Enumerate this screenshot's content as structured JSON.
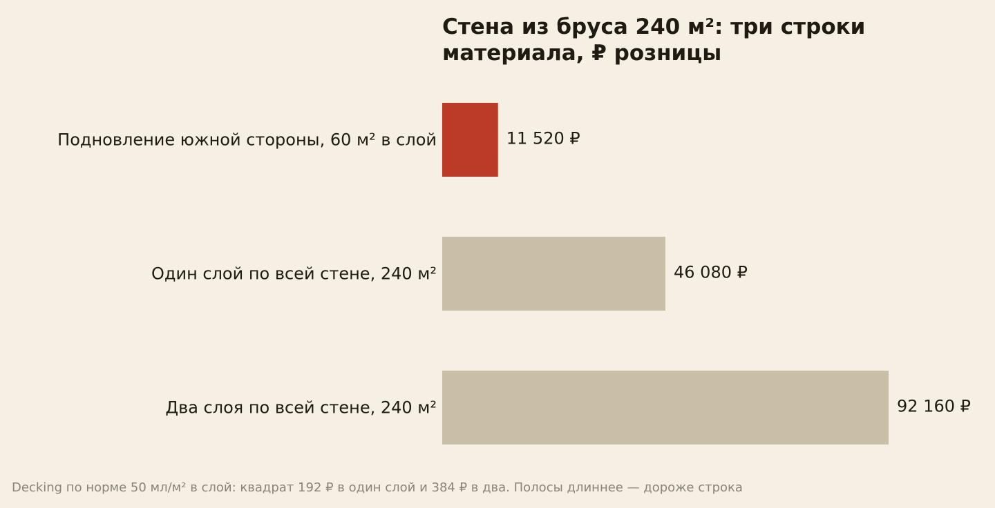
{
  "chart_data": {
    "type": "bar",
    "orientation": "horizontal",
    "title": "Стена из бруса 240 м²: три строки\nматериала, ₽ розницы",
    "categories": [
      "Подновление южной стороны, 60 м² в слой",
      "Один слой по всей стене, 240 м²",
      "Два слоя по всей стене, 240 м²"
    ],
    "values": [
      11520,
      46080,
      92160
    ],
    "value_labels": [
      "11 520 ₽",
      "46 080 ₽",
      "92 160 ₽"
    ],
    "bar_colors": [
      "#bb3b26",
      "#c9bfa7",
      "#c9bfa7"
    ],
    "xlim": [
      0,
      92160
    ],
    "grid": false,
    "note": "Decking по норме 50 мл/м² в слой: квадрат 192 ₽ в один слой и 384 ₽ в два. Полосы длиннее — дороже строка"
  },
  "colors": {
    "background": "#f6f0e4",
    "text": "#1f1a12",
    "note": "#8a8478"
  }
}
